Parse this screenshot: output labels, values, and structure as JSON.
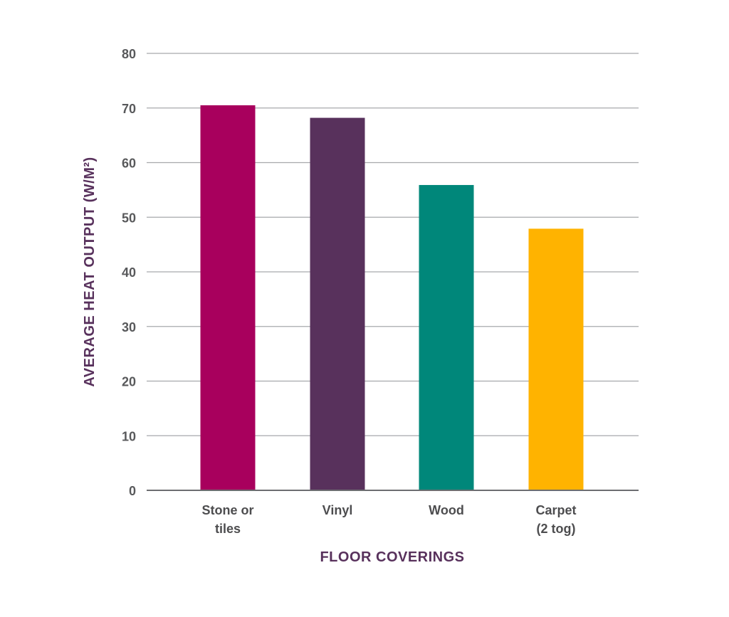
{
  "chart_data": {
    "type": "bar",
    "title": "",
    "xlabel": "FLOOR COVERINGS",
    "ylabel": "AVERAGE HEAT OUTPUT (W/M²)",
    "ylim": [
      0,
      80
    ],
    "yticks": [
      0,
      10,
      20,
      30,
      40,
      50,
      60,
      70,
      80
    ],
    "grid": true,
    "categories": [
      [
        "Stone or",
        "tiles"
      ],
      [
        "Vinyl"
      ],
      [
        "Wood"
      ],
      [
        "Carpet",
        "(2 tog)"
      ]
    ],
    "values": [
      70.5,
      68.2,
      55.9,
      47.9
    ],
    "colors": [
      "#a8005d",
      "#58315c",
      "#00877a",
      "#ffb300"
    ]
  }
}
